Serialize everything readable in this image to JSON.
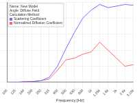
{
  "chart_data": {
    "type": "line",
    "annotations": [
      "Name: New Model",
      "Angle: Diffuse Field",
      "Calculation Method:"
    ],
    "x_label": "Frequency [Hz]",
    "categories": [
      "100",
      "125",
      "160",
      "200",
      "250",
      "315",
      "400",
      "500",
      "630",
      "800",
      "1k",
      "1.25k",
      "1.6k",
      "2k",
      "2.5k",
      "3.15k"
    ],
    "series": [
      {
        "name": "Scattering Coefficient",
        "color": "#7070ff",
        "values": [
          0.0,
          0.0,
          0.01,
          0.01,
          0.02,
          0.06,
          0.2,
          0.42,
          0.62,
          0.8,
          0.9,
          0.97,
          0.93,
          0.95,
          0.97,
          0.96
        ]
      },
      {
        "name": "Normalized Diffusion Coefficient",
        "color": "#ff6b6b",
        "values": [
          0.0,
          0.0,
          0.0,
          0.01,
          0.02,
          0.04,
          0.15,
          0.28,
          0.3,
          0.35,
          0.38,
          0.5,
          0.4,
          0.3,
          0.2,
          0.22
        ]
      }
    ],
    "ylim": [
      0,
      1
    ],
    "yticks": [
      0,
      0.2,
      0.4,
      0.6,
      0.8,
      1
    ],
    "grid": true,
    "legend": "upper left",
    "tick_labels": "x"
  }
}
